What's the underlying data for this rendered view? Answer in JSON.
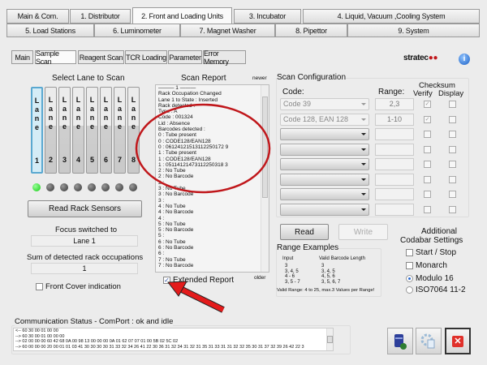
{
  "main_tabs": [
    {
      "label": "Main & Com."
    },
    {
      "label": "1. Distributor"
    },
    {
      "label": "2. Front and Loading Units",
      "selected": true
    },
    {
      "label": "3. Incubator"
    },
    {
      "label": "4. Liquid, Vacuum ,Cooling System"
    },
    {
      "label": "5. Load Stations"
    },
    {
      "label": "6. Luminometer"
    },
    {
      "label": "7. Magnet Washer"
    },
    {
      "label": "8. Pipettor"
    },
    {
      "label": "9. System"
    }
  ],
  "sub_tabs": [
    {
      "label": "Main"
    },
    {
      "label": "Sample Scan",
      "selected": true
    },
    {
      "label": "Reagent Scan"
    },
    {
      "label": "TCR Loading"
    },
    {
      "label": "Parameter"
    },
    {
      "label": "Error Memory"
    }
  ],
  "logo": "stratec",
  "icons": {
    "info": "info-icon",
    "comm_1": "database-export-icon",
    "comm_2": "settings-copy-icon",
    "close": "close-icon"
  },
  "lanes": {
    "title": "Select Lane to Scan",
    "items": [
      {
        "word": "Lane",
        "num": "1",
        "selected": true,
        "led": "on"
      },
      {
        "word": "Lane",
        "num": "2",
        "led": "off"
      },
      {
        "word": "Lane",
        "num": "3",
        "led": "off"
      },
      {
        "word": "Lane",
        "num": "4",
        "led": "off"
      },
      {
        "word": "Lane",
        "num": "5",
        "led": "off"
      },
      {
        "word": "Lane",
        "num": "6",
        "led": "off"
      },
      {
        "word": "Lane",
        "num": "7",
        "led": "off"
      },
      {
        "word": "Lane",
        "num": "8",
        "led": "off"
      }
    ],
    "read_button": "Read Rack Sensors",
    "focus_label": "Focus switched to",
    "focus_value": "Lane 1",
    "sum_label": "Sum of detected rack occupations",
    "sum_value": "1",
    "front_cover": "Front Cover indication",
    "front_cover_checked": false
  },
  "scan_report": {
    "title": "Scan Report",
    "newer": "newer",
    "older": "older",
    "lines": [
      "——— 1 ———",
      "Rack Occupation Changed",
      "Lane 1 to State : Inserted",
      "Rack detected :",
      "Type : A",
      "Code : 001324",
      "Lid : Absence",
      "Barcodes detected :",
      "0 : Tube present",
      "0 : CODE128/EAN128",
      "0 : 06124121513112250172 9",
      "1 : Tube present",
      "1 : CODE128/EAN128",
      "1 : 05114121473112250318 3",
      "2 : No Tube",
      "2 : No Barcode",
      "2 :",
      "3 : No Tube",
      "3 : No Barcode",
      "3 :",
      "4 : No Tube",
      "4 : No Barcode",
      "4 :",
      "5 : No Tube",
      "5 : No Barcode",
      "5 :",
      "6 : No Tube",
      "6 : No Barcode",
      "6 :",
      "7 : No Tube",
      "7 : No Barcode"
    ],
    "extended_label": "Extended Report",
    "extended_checked": true
  },
  "scan_config": {
    "title": "Scan Configuration",
    "code_label": "Code:",
    "range_label": "Range:",
    "checksum_label": "Checksum",
    "verify_label": "Verify",
    "display_label": "Display",
    "rows": [
      {
        "code": "Code 39",
        "range": "2,3",
        "verify": true,
        "display": false
      },
      {
        "code": "Code 128, EAN 128",
        "range": "1-10",
        "verify": true,
        "display": false
      },
      {
        "code": "",
        "range": "",
        "verify": false,
        "display": false
      },
      {
        "code": "",
        "range": "",
        "verify": false,
        "display": false
      },
      {
        "code": "",
        "range": "",
        "verify": false,
        "display": false
      },
      {
        "code": "",
        "range": "",
        "verify": false,
        "display": false
      },
      {
        "code": "",
        "range": "",
        "verify": false,
        "display": false
      },
      {
        "code": "",
        "range": "",
        "verify": false,
        "display": false
      }
    ],
    "read_button": "Read",
    "write_button": "Write",
    "range_examples": {
      "title": "Range Examples",
      "input_header": "Input",
      "valid_header": "Valid Barcode Length",
      "inputs": "3\n3, 4, 5\n4 - 6\n3, 5 - 7",
      "valid": "3\n3, 4, 5\n4, 5, 6\n3, 5, 6, 7",
      "note": "Valid Range: 4 to 25, max.3 Values per Range!"
    },
    "codabar": {
      "title_1": "Additional",
      "title_2": "Codabar Settings",
      "start_stop": "Start / Stop",
      "start_stop_checked": false,
      "monarch": "Monarch",
      "monarch_checked": false,
      "modulo16": "Modulo 16",
      "iso": "ISO7064 11-2",
      "selected": "Modulo 16"
    }
  },
  "comm": {
    "status": "Communication Status - ComPort : ok and idle",
    "lines": [
      "<-- 60 30 00 01 00 00",
      "--> 60 30 00 01 00 00 00",
      "--> 02 00 00 00 60 42 68 0A 00 98 13 00 00 00 0A 01 62 07 07 01 00 5B 02 5C 02",
      "--> 60 00 00 00 20 00 01 01 03 41 30 30 30 30 31 33 32 34 26 41 22 30 36 31 32 34 31 32 31 35 31 33 31 31 32 32 35 30 31 37 32 39 26 42 22 3"
    ]
  },
  "colors": {
    "annotation": "#c0171b",
    "led_on": "#22cc22",
    "lane_selected": "#5aa8d0",
    "close_button": "#e0302a"
  }
}
